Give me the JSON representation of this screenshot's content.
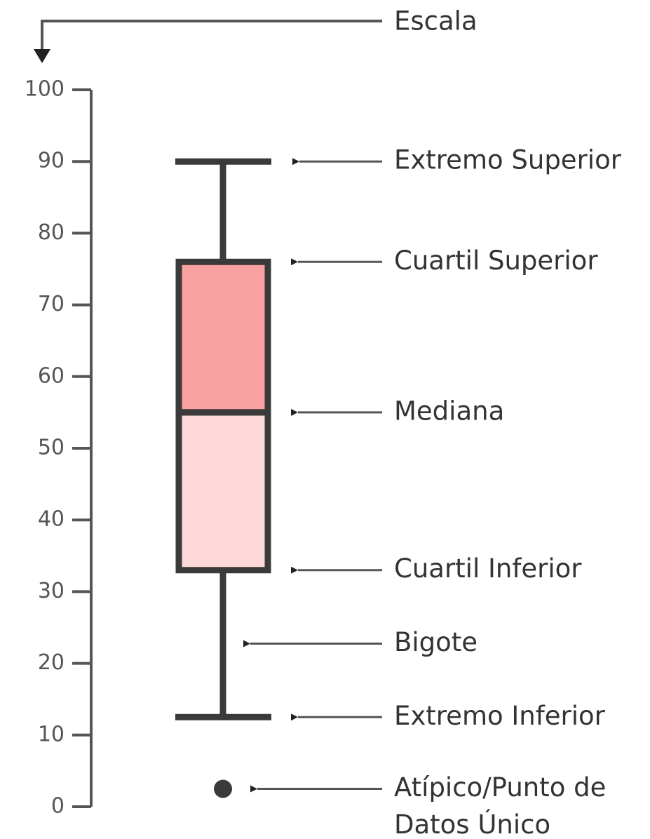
{
  "chart_data": {
    "type": "box",
    "ylim": [
      0,
      100
    ],
    "yticks": [
      0,
      10,
      20,
      30,
      40,
      50,
      60,
      70,
      80,
      90,
      100
    ],
    "boxes": [
      {
        "low": 12.5,
        "q1": 33,
        "median": 55,
        "q3": 76,
        "high": 90,
        "outliers": [
          2.5
        ],
        "upper_color": "#f9a0a0",
        "lower_color": "#fdd8d8",
        "stroke": "#3a3a3a"
      }
    ],
    "annotations": {
      "scale": "Escala",
      "high": "Extremo Superior",
      "q3": "Cuartil Superior",
      "median": "Mediana",
      "q1": "Cuartil Inferior",
      "whisker": "Bigote",
      "low": "Extremo Inferior",
      "outlier": [
        "Atípico/Punto de",
        "Datos Único"
      ]
    }
  }
}
